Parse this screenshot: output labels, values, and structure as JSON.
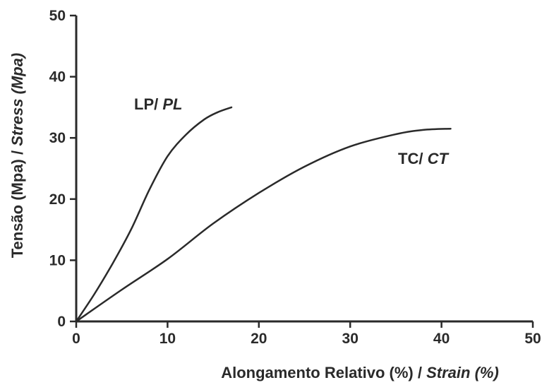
{
  "chart_data": {
    "type": "line",
    "xlabel": {
      "main": "Alongamento Relativo (%) / ",
      "italic": "Strain (%)"
    },
    "ylabel": {
      "main": "Tensão (Mpa) / ",
      "italic": "Stress (Mpa)"
    },
    "xlim": [
      0,
      50
    ],
    "ylim": [
      0,
      50
    ],
    "x_ticks": [
      "0",
      "10",
      "20",
      "30",
      "40",
      "50"
    ],
    "y_ticks": [
      "0",
      "10",
      "20",
      "30",
      "40",
      "50"
    ],
    "grid": false,
    "legend": "none",
    "series": [
      {
        "name": "LP/ PL",
        "label_main": "LP/ ",
        "label_italic": "PL",
        "x": [
          0,
          2,
          4,
          6,
          8,
          10,
          12,
          14,
          15.5,
          17
        ],
        "y": [
          0,
          4.5,
          9.5,
          15,
          21.5,
          27,
          30.5,
          33,
          34.2,
          35
        ]
      },
      {
        "name": "TC/ CT",
        "label_main": "TC/ ",
        "label_italic": "CT",
        "x": [
          0,
          5,
          10,
          15,
          20,
          25,
          30,
          35,
          38,
          41
        ],
        "y": [
          0,
          5.2,
          10.2,
          16,
          21,
          25.3,
          28.6,
          30.6,
          31.3,
          31.5
        ]
      }
    ]
  }
}
